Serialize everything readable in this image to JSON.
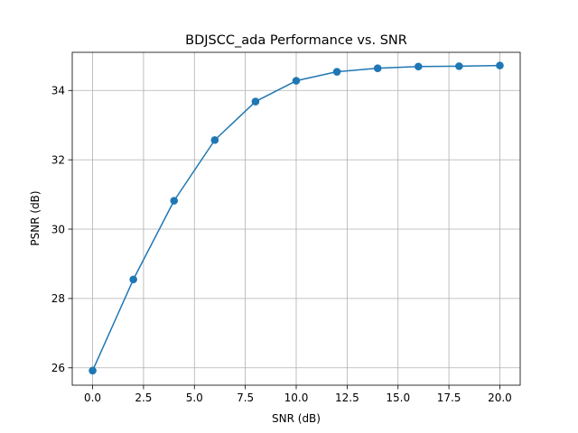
{
  "chart_data": {
    "type": "line",
    "title": "BDJSCC_ada Performance vs. SNR",
    "xlabel": "SNR (dB)",
    "ylabel": "PSNR (dB)",
    "xlim": [
      -1.0,
      21.0
    ],
    "ylim": [
      25.5,
      35.1
    ],
    "grid": true,
    "xticks": [
      0.0,
      2.5,
      5.0,
      7.5,
      10.0,
      12.5,
      15.0,
      17.5,
      20.0
    ],
    "xtick_labels": [
      "0.0",
      "2.5",
      "5.0",
      "7.5",
      "10.0",
      "12.5",
      "15.0",
      "17.5",
      "20.0"
    ],
    "yticks": [
      26,
      28,
      30,
      32,
      34
    ],
    "ytick_labels": [
      "26",
      "28",
      "30",
      "32",
      "34"
    ],
    "series": [
      {
        "color": "#1f77b4",
        "marker": "circle",
        "x": [
          0,
          2,
          4,
          6,
          8,
          10,
          12,
          14,
          16,
          18,
          20
        ],
        "y": [
          25.92,
          28.55,
          30.82,
          32.57,
          33.68,
          34.28,
          34.54,
          34.64,
          34.69,
          34.7,
          34.72
        ]
      }
    ]
  }
}
